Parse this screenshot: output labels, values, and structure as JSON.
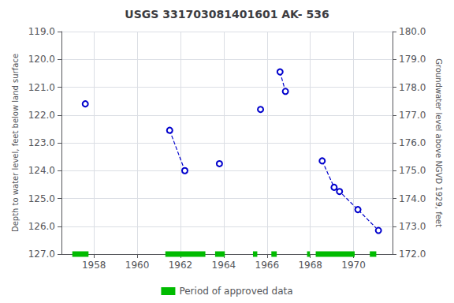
{
  "chart_data": {
    "type": "line",
    "title": "USGS 331703081401601 AK- 536",
    "ylabel": "Depth to water level, feet below land surface",
    "y2label": "Groundwater level above NGVD 1929, feet",
    "x": [
      1957.6,
      null,
      1961.5,
      1962.2,
      null,
      1963.8,
      null,
      1965.7,
      null,
      1966.6,
      1966.85,
      null,
      1968.55,
      1969.1,
      1969.35,
      1970.2,
      1971.15
    ],
    "values": [
      121.6,
      null,
      122.55,
      124.0,
      null,
      123.75,
      null,
      121.8,
      null,
      120.45,
      121.15,
      null,
      123.65,
      124.6,
      124.75,
      125.4,
      126.15
    ],
    "color": "#0000cc",
    "line_style": "dashed",
    "marker": "circle",
    "xlim": [
      1956.5,
      1971.8
    ],
    "xticks": [
      1958,
      1960,
      1962,
      1964,
      1966,
      1968,
      1970
    ],
    "ylim": [
      127.0,
      119.0
    ],
    "yticks": [
      {
        "value": 119,
        "label": "119.0"
      },
      {
        "value": 120,
        "label": "120.0"
      },
      {
        "value": 121,
        "label": "121.0"
      },
      {
        "value": 122,
        "label": "122.0"
      },
      {
        "value": 123,
        "label": "123.0"
      },
      {
        "value": 124,
        "label": "124.0"
      },
      {
        "value": 125,
        "label": "125.0"
      },
      {
        "value": 126,
        "label": "126.0"
      },
      {
        "value": 127,
        "label": "127.0"
      }
    ],
    "y2lim": [
      172.0,
      180.0
    ],
    "y2ticks": [
      {
        "value": 180,
        "label": "180.0"
      },
      {
        "value": 179,
        "label": "179.0"
      },
      {
        "value": 178,
        "label": "178.0"
      },
      {
        "value": 177,
        "label": "177.0"
      },
      {
        "value": 176,
        "label": "176.0"
      },
      {
        "value": 175,
        "label": "175.0"
      },
      {
        "value": 174,
        "label": "174.0"
      },
      {
        "value": 173,
        "label": "173.0"
      },
      {
        "value": 172,
        "label": "172.0"
      }
    ],
    "grid": true,
    "legend": "bottom",
    "approved_periods": {
      "name": "Period of approved data",
      "color": "#00bb00",
      "y": 127.0,
      "ranges": [
        [
          1957.0,
          1957.75
        ],
        [
          1961.3,
          1963.15
        ],
        [
          1963.6,
          1964.05
        ],
        [
          1965.35,
          1965.55
        ],
        [
          1966.2,
          1966.45
        ],
        [
          1967.85,
          1967.98
        ],
        [
          1968.25,
          1970.05
        ],
        [
          1970.75,
          1971.05
        ]
      ]
    }
  }
}
